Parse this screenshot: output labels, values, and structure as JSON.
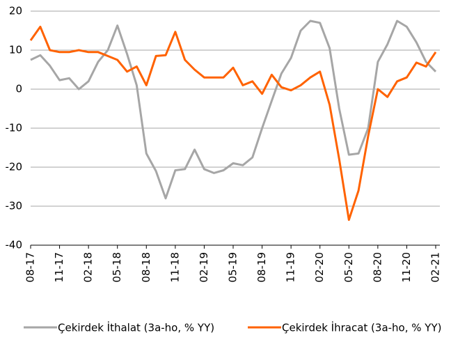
{
  "chart_data": {
    "type": "line",
    "categories": [
      "08-17",
      null,
      null,
      "11-17",
      null,
      null,
      "02-18",
      null,
      null,
      "05-18",
      null,
      null,
      "08-18",
      null,
      null,
      "11-18",
      null,
      null,
      "02-19",
      null,
      null,
      "05-19",
      null,
      null,
      "08-19",
      null,
      null,
      "11-19",
      null,
      null,
      "02-20",
      null,
      null,
      "05-20",
      null,
      null,
      "08-20",
      null,
      null,
      "11-20",
      null,
      null,
      "02-21"
    ],
    "series": [
      {
        "name": "Çekirdek İthalat (3a-ho, % YY)",
        "color": "#a6a6a6",
        "values": [
          7.5,
          8.7,
          6,
          2.3,
          2.8,
          0,
          2,
          7,
          10,
          16.3,
          9,
          1,
          -16.5,
          -21,
          -28,
          -20.8,
          -20.5,
          -15.5,
          -20.5,
          -21.5,
          -20.8,
          -19,
          -19.5,
          -17.5,
          -10,
          -3,
          4,
          8,
          15,
          17.5,
          17,
          10.5,
          -5,
          -16.8,
          -16.5,
          -10,
          7,
          11.5,
          17.5,
          16,
          12,
          7,
          4.5
        ]
      },
      {
        "name": "Çekirdek İhracat (3a-ho, % YY)",
        "color": "#ff6200",
        "values": [
          12.5,
          16,
          10,
          9.5,
          9.5,
          10,
          9.5,
          9.5,
          8.5,
          7.5,
          4.5,
          5.8,
          1,
          8.5,
          8.7,
          14.7,
          7.5,
          5,
          3,
          3,
          3,
          5.5,
          1,
          2,
          -1.2,
          3.7,
          0.5,
          -0.3,
          1,
          3,
          4.5,
          -4,
          -18,
          -33.5,
          -26,
          -12,
          0,
          -2,
          2,
          3,
          6.8,
          5.8,
          9.5
        ]
      }
    ],
    "ylim": [
      -40,
      20
    ],
    "yticks": [
      -40,
      -30,
      -20,
      -10,
      0,
      10,
      20
    ],
    "grid": true
  }
}
